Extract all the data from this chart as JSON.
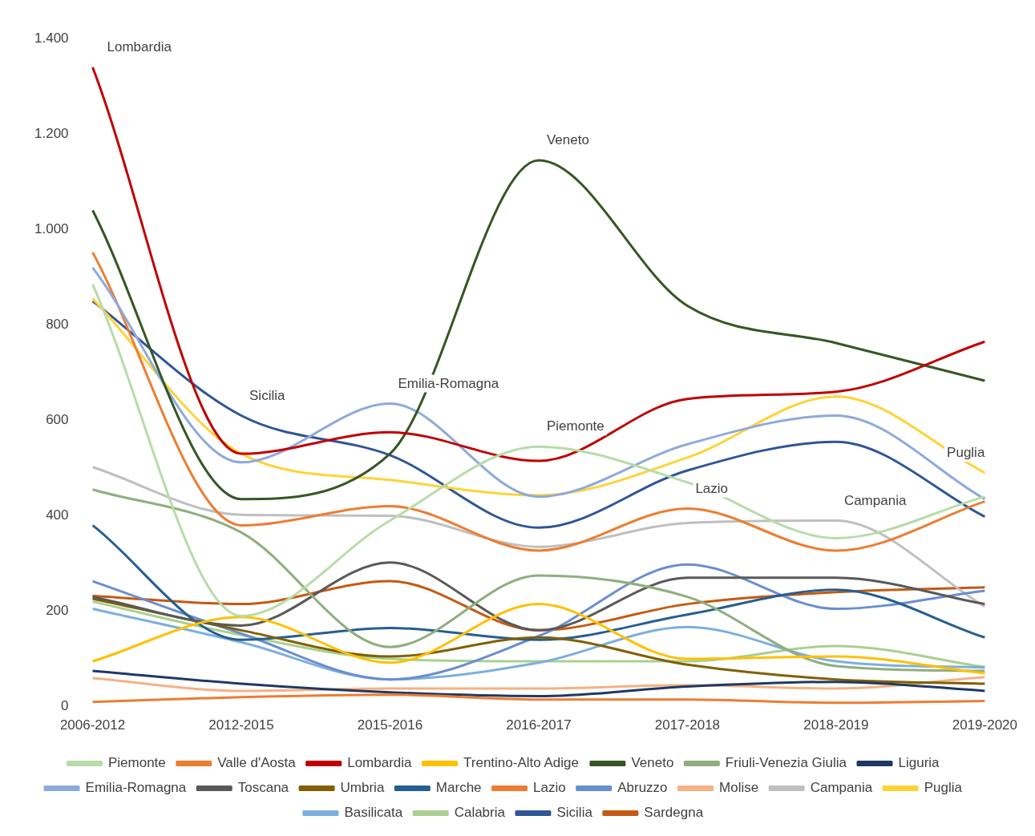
{
  "chart_data": {
    "type": "line",
    "categories": [
      "2006-2012",
      "2012-2015",
      "2015-2016",
      "2016-2017",
      "2017-2018",
      "2018-2019",
      "2019-2020"
    ],
    "ylim": [
      0,
      1400
    ],
    "yticks": [
      {
        "value": 0,
        "label": "0"
      },
      {
        "value": 200,
        "label": "200"
      },
      {
        "value": 400,
        "label": "400"
      },
      {
        "value": 600,
        "label": "600"
      },
      {
        "value": 800,
        "label": "800"
      },
      {
        "value": 1000,
        "label": "1.000"
      },
      {
        "value": 1200,
        "label": "1.200"
      },
      {
        "value": 1400,
        "label": "1.400"
      }
    ],
    "grid": false,
    "legend": "bottom",
    "marker": "none",
    "line_style": "solid",
    "series": [
      {
        "name": "Piemonte",
        "color": "#b7dca8",
        "values": [
          885,
          190,
          390,
          545,
          470,
          353,
          440
        ]
      },
      {
        "name": "Valle d'Aosta",
        "color": "#ed7d31",
        "values": [
          10,
          20,
          25,
          15,
          15,
          8,
          12
        ]
      },
      {
        "name": "Lombardia",
        "color": "#c00000",
        "values": [
          1340,
          530,
          575,
          515,
          645,
          660,
          765
        ]
      },
      {
        "name": "Trentino-Alto Adige",
        "color": "#ffc000",
        "values": [
          95,
          188,
          92,
          215,
          100,
          105,
          70
        ]
      },
      {
        "name": "Veneto",
        "color": "#375623",
        "values": [
          1040,
          435,
          530,
          1145,
          840,
          762,
          683
        ]
      },
      {
        "name": "Friuli-Venezia Giulia",
        "color": "#8fae7d",
        "values": [
          455,
          365,
          125,
          275,
          230,
          85,
          75
        ]
      },
      {
        "name": "Liguria",
        "color": "#1f3864",
        "values": [
          75,
          48,
          30,
          22,
          42,
          52,
          33
        ]
      },
      {
        "name": "Emilia-Romagna",
        "color": "#8eaadb",
        "values": [
          920,
          512,
          635,
          440,
          550,
          610,
          435
        ]
      },
      {
        "name": "Toscana",
        "color": "#595959",
        "values": [
          230,
          170,
          302,
          160,
          270,
          270,
          215
        ]
      },
      {
        "name": "Umbria",
        "color": "#806000",
        "values": [
          226,
          160,
          105,
          145,
          88,
          57,
          48
        ]
      },
      {
        "name": "Marche",
        "color": "#255e91",
        "values": [
          380,
          140,
          165,
          140,
          193,
          245,
          145
        ]
      },
      {
        "name": "Lazio",
        "color": "#ed7d31",
        "values": [
          952,
          380,
          420,
          327,
          415,
          327,
          430
        ]
      },
      {
        "name": "Abruzzo",
        "color": "#698ed0",
        "values": [
          263,
          153,
          57,
          148,
          298,
          205,
          243
        ]
      },
      {
        "name": "Molise",
        "color": "#f4b183",
        "values": [
          60,
          33,
          38,
          38,
          45,
          38,
          62
        ]
      },
      {
        "name": "Campania",
        "color": "#bfbfbf",
        "values": [
          502,
          402,
          400,
          335,
          385,
          390,
          210
        ]
      },
      {
        "name": "Puglia",
        "color": "#ffd338",
        "values": [
          855,
          530,
          475,
          443,
          522,
          650,
          490
        ]
      },
      {
        "name": "Basilicata",
        "color": "#7cafdd",
        "values": [
          205,
          135,
          57,
          92,
          167,
          95,
          82
        ]
      },
      {
        "name": "Calabria",
        "color": "#a9d08e",
        "values": [
          220,
          150,
          100,
          95,
          95,
          127,
          83
        ]
      },
      {
        "name": "Sicilia",
        "color": "#2f5597",
        "values": [
          850,
          610,
          527,
          375,
          495,
          555,
          398
        ]
      },
      {
        "name": "Sardegna",
        "color": "#c55a11",
        "values": [
          232,
          215,
          263,
          160,
          215,
          240,
          250
        ]
      }
    ],
    "annotations": [
      {
        "text": "Lombardia",
        "x": "2006-2012",
        "y": 1340
      },
      {
        "text": "Sicilia",
        "x": "2012-2015",
        "y": 610
      },
      {
        "text": "Emilia-Romagna",
        "x": "2015-2016",
        "y": 635
      },
      {
        "text": "Veneto",
        "x": "2016-2017",
        "y": 1145
      },
      {
        "text": "Piemonte",
        "x": "2016-2017",
        "y": 545
      },
      {
        "text": "Lazio",
        "x": "2017-2018",
        "y": 415
      },
      {
        "text": "Campania",
        "x": "2018-2019",
        "y": 390
      },
      {
        "text": "Puglia",
        "x": "2019-2020",
        "y": 490
      }
    ]
  }
}
